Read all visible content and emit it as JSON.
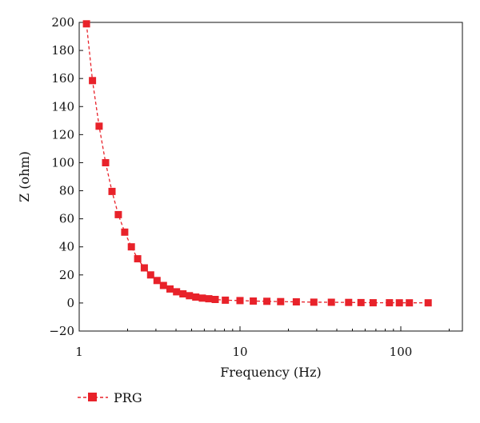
{
  "chart_data": {
    "type": "scatter",
    "xlabel": "Frequency (Hz)",
    "ylabel": "Z (ohm)",
    "x_scale": "log",
    "xlim": [
      1,
      200
    ],
    "ylim": [
      -20,
      200
    ],
    "x_ticks": [
      1,
      10,
      100
    ],
    "x_tick_labels": [
      "1",
      "10",
      "100"
    ],
    "y_ticks": [
      -20,
      0,
      20,
      40,
      60,
      80,
      100,
      120,
      140,
      160,
      180,
      200
    ],
    "y_tick_labels": [
      "−20",
      "0",
      "20",
      "40",
      "60",
      "80",
      "100",
      "120",
      "140",
      "160",
      "180",
      "200"
    ],
    "grid": false,
    "legend_position": "bottom-left",
    "series": [
      {
        "name": "PRG",
        "color": "#e8222a",
        "marker": "square",
        "line": "dashed",
        "x": [
          1.11,
          1.21,
          1.33,
          1.46,
          1.6,
          1.75,
          1.92,
          2.11,
          2.31,
          2.54,
          2.78,
          3.05,
          3.34,
          3.67,
          4.03,
          4.42,
          4.85,
          5.31,
          5.83,
          6.4,
          7.01,
          8.11,
          10.0,
          12.1,
          14.7,
          17.9,
          22.4,
          28.8,
          37.0,
          47.4,
          56.5,
          67.3,
          85.0,
          98.0,
          113.0,
          148.0
        ],
        "y": [
          199,
          158.5,
          126,
          100,
          79.5,
          63,
          50.5,
          40,
          31.5,
          25,
          20,
          16,
          12.5,
          10,
          8,
          6.5,
          5.2,
          4.2,
          3.5,
          3.0,
          2.5,
          2.0,
          1.7,
          1.4,
          1.2,
          1.0,
          0.8,
          0.6,
          0.5,
          0.4,
          0.3,
          0.2,
          0.2,
          0.1,
          0.1,
          0.1
        ]
      }
    ]
  }
}
